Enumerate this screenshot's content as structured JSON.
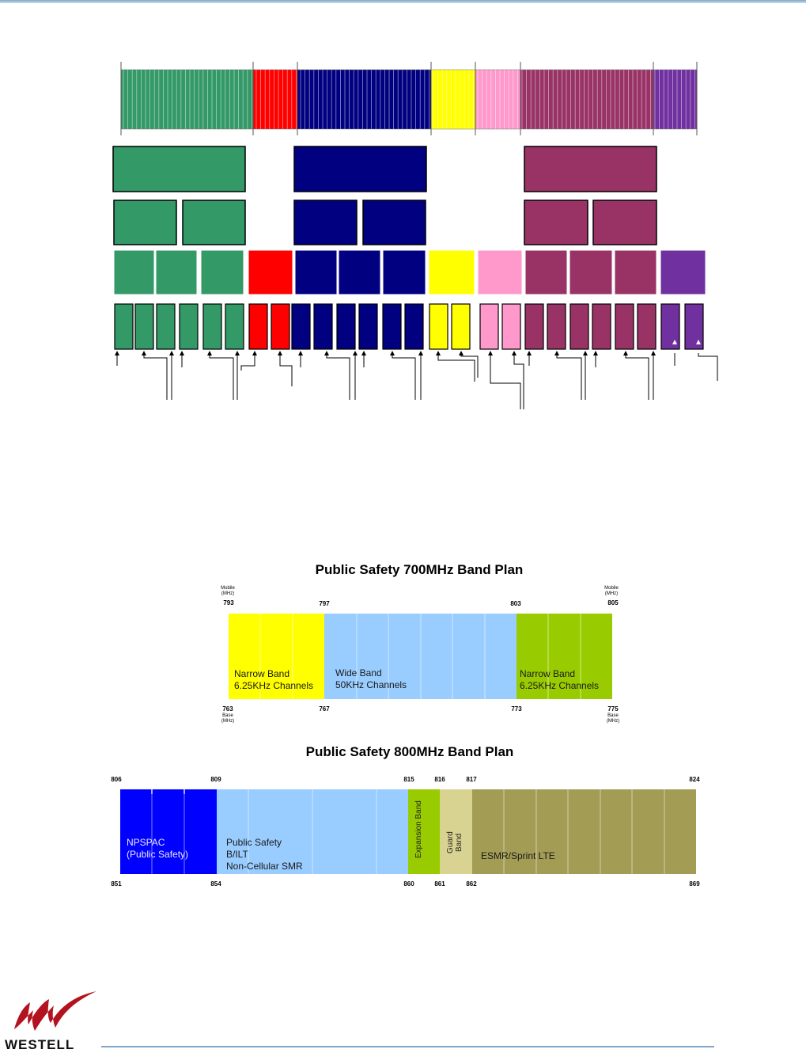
{
  "colors": {
    "green": "#339966",
    "red": "#ff0000",
    "navy": "#000080",
    "yellow": "#ffff00",
    "pink": "#ff99cc",
    "maroon": "#993366",
    "purple": "#7030a0",
    "ps_yellow": "#ffff00",
    "ps_lightblue": "#99ccff",
    "ps_lightgreen": "#99cc00",
    "ps_blue": "#0000ff",
    "ps_tan": "#d9d391",
    "ps_olive": "#a39c55"
  },
  "band_700": {
    "title": "Public Safety 700MHz Band Plan",
    "mobile_left": "Mobile\n(MHz)",
    "mobile_right": "Mobile\n(MHz)",
    "base_left": "Base\n(MHz)",
    "base_right": "Base\n(MHz)",
    "top_ticks": [
      "793",
      "797",
      "803",
      "805"
    ],
    "bottom_ticks": [
      "763",
      "767",
      "773",
      "775"
    ],
    "segments": [
      {
        "line1": "Narrow Band",
        "line2": "6.25KHz Channels"
      },
      {
        "line1": "Wide Band",
        "line2": "50KHz Channels"
      },
      {
        "line1": "Narrow Band",
        "line2": "6.25KHz Channels"
      }
    ]
  },
  "band_800": {
    "title": "Public Safety 800MHz Band Plan",
    "top_ticks": [
      "806",
      "809",
      "815",
      "816",
      "817",
      "824"
    ],
    "bottom_ticks": [
      "851",
      "854",
      "860",
      "861",
      "862",
      "869"
    ],
    "seg_npspac_1": "NPSPAC",
    "seg_npspac_2": "(Public Safety)",
    "seg_ps_1": "Public Safety",
    "seg_ps_2": "B/ILT",
    "seg_ps_3": "Non-Cellular SMR",
    "seg_expansion_1": "Expansion",
    "seg_expansion_2": "Band",
    "seg_guard_1": "Guard",
    "seg_guard_2": "Band",
    "seg_esmr": "ESMR/Sprint LTE"
  },
  "logo": {
    "text": "WESTELL"
  }
}
